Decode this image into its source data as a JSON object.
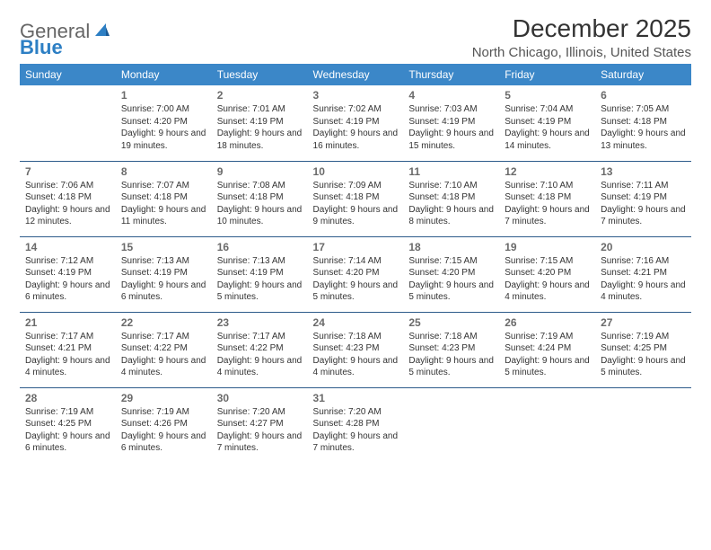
{
  "logo": {
    "general": "General",
    "blue": "Blue"
  },
  "title": "December 2025",
  "location": "North Chicago, Illinois, United States",
  "colors": {
    "header_bg": "#3b87c8",
    "row_separator": "#2d5b8a",
    "text": "#333333",
    "day_num": "#6a6a6a"
  },
  "typography": {
    "title_fontsize": 28,
    "location_fontsize": 15,
    "header_fontsize": 12,
    "daynum_fontsize": 12,
    "cell_fontsize": 10
  },
  "day_headers": [
    "Sunday",
    "Monday",
    "Tuesday",
    "Wednesday",
    "Thursday",
    "Friday",
    "Saturday"
  ],
  "weeks": [
    [
      null,
      {
        "n": "1",
        "sunrise": "Sunrise: 7:00 AM",
        "sunset": "Sunset: 4:20 PM",
        "daylight": "Daylight: 9 hours and 19 minutes."
      },
      {
        "n": "2",
        "sunrise": "Sunrise: 7:01 AM",
        "sunset": "Sunset: 4:19 PM",
        "daylight": "Daylight: 9 hours and 18 minutes."
      },
      {
        "n": "3",
        "sunrise": "Sunrise: 7:02 AM",
        "sunset": "Sunset: 4:19 PM",
        "daylight": "Daylight: 9 hours and 16 minutes."
      },
      {
        "n": "4",
        "sunrise": "Sunrise: 7:03 AM",
        "sunset": "Sunset: 4:19 PM",
        "daylight": "Daylight: 9 hours and 15 minutes."
      },
      {
        "n": "5",
        "sunrise": "Sunrise: 7:04 AM",
        "sunset": "Sunset: 4:19 PM",
        "daylight": "Daylight: 9 hours and 14 minutes."
      },
      {
        "n": "6",
        "sunrise": "Sunrise: 7:05 AM",
        "sunset": "Sunset: 4:18 PM",
        "daylight": "Daylight: 9 hours and 13 minutes."
      }
    ],
    [
      {
        "n": "7",
        "sunrise": "Sunrise: 7:06 AM",
        "sunset": "Sunset: 4:18 PM",
        "daylight": "Daylight: 9 hours and 12 minutes."
      },
      {
        "n": "8",
        "sunrise": "Sunrise: 7:07 AM",
        "sunset": "Sunset: 4:18 PM",
        "daylight": "Daylight: 9 hours and 11 minutes."
      },
      {
        "n": "9",
        "sunrise": "Sunrise: 7:08 AM",
        "sunset": "Sunset: 4:18 PM",
        "daylight": "Daylight: 9 hours and 10 minutes."
      },
      {
        "n": "10",
        "sunrise": "Sunrise: 7:09 AM",
        "sunset": "Sunset: 4:18 PM",
        "daylight": "Daylight: 9 hours and 9 minutes."
      },
      {
        "n": "11",
        "sunrise": "Sunrise: 7:10 AM",
        "sunset": "Sunset: 4:18 PM",
        "daylight": "Daylight: 9 hours and 8 minutes."
      },
      {
        "n": "12",
        "sunrise": "Sunrise: 7:10 AM",
        "sunset": "Sunset: 4:18 PM",
        "daylight": "Daylight: 9 hours and 7 minutes."
      },
      {
        "n": "13",
        "sunrise": "Sunrise: 7:11 AM",
        "sunset": "Sunset: 4:19 PM",
        "daylight": "Daylight: 9 hours and 7 minutes."
      }
    ],
    [
      {
        "n": "14",
        "sunrise": "Sunrise: 7:12 AM",
        "sunset": "Sunset: 4:19 PM",
        "daylight": "Daylight: 9 hours and 6 minutes."
      },
      {
        "n": "15",
        "sunrise": "Sunrise: 7:13 AM",
        "sunset": "Sunset: 4:19 PM",
        "daylight": "Daylight: 9 hours and 6 minutes."
      },
      {
        "n": "16",
        "sunrise": "Sunrise: 7:13 AM",
        "sunset": "Sunset: 4:19 PM",
        "daylight": "Daylight: 9 hours and 5 minutes."
      },
      {
        "n": "17",
        "sunrise": "Sunrise: 7:14 AM",
        "sunset": "Sunset: 4:20 PM",
        "daylight": "Daylight: 9 hours and 5 minutes."
      },
      {
        "n": "18",
        "sunrise": "Sunrise: 7:15 AM",
        "sunset": "Sunset: 4:20 PM",
        "daylight": "Daylight: 9 hours and 5 minutes."
      },
      {
        "n": "19",
        "sunrise": "Sunrise: 7:15 AM",
        "sunset": "Sunset: 4:20 PM",
        "daylight": "Daylight: 9 hours and 4 minutes."
      },
      {
        "n": "20",
        "sunrise": "Sunrise: 7:16 AM",
        "sunset": "Sunset: 4:21 PM",
        "daylight": "Daylight: 9 hours and 4 minutes."
      }
    ],
    [
      {
        "n": "21",
        "sunrise": "Sunrise: 7:17 AM",
        "sunset": "Sunset: 4:21 PM",
        "daylight": "Daylight: 9 hours and 4 minutes."
      },
      {
        "n": "22",
        "sunrise": "Sunrise: 7:17 AM",
        "sunset": "Sunset: 4:22 PM",
        "daylight": "Daylight: 9 hours and 4 minutes."
      },
      {
        "n": "23",
        "sunrise": "Sunrise: 7:17 AM",
        "sunset": "Sunset: 4:22 PM",
        "daylight": "Daylight: 9 hours and 4 minutes."
      },
      {
        "n": "24",
        "sunrise": "Sunrise: 7:18 AM",
        "sunset": "Sunset: 4:23 PM",
        "daylight": "Daylight: 9 hours and 4 minutes."
      },
      {
        "n": "25",
        "sunrise": "Sunrise: 7:18 AM",
        "sunset": "Sunset: 4:23 PM",
        "daylight": "Daylight: 9 hours and 5 minutes."
      },
      {
        "n": "26",
        "sunrise": "Sunrise: 7:19 AM",
        "sunset": "Sunset: 4:24 PM",
        "daylight": "Daylight: 9 hours and 5 minutes."
      },
      {
        "n": "27",
        "sunrise": "Sunrise: 7:19 AM",
        "sunset": "Sunset: 4:25 PM",
        "daylight": "Daylight: 9 hours and 5 minutes."
      }
    ],
    [
      {
        "n": "28",
        "sunrise": "Sunrise: 7:19 AM",
        "sunset": "Sunset: 4:25 PM",
        "daylight": "Daylight: 9 hours and 6 minutes."
      },
      {
        "n": "29",
        "sunrise": "Sunrise: 7:19 AM",
        "sunset": "Sunset: 4:26 PM",
        "daylight": "Daylight: 9 hours and 6 minutes."
      },
      {
        "n": "30",
        "sunrise": "Sunrise: 7:20 AM",
        "sunset": "Sunset: 4:27 PM",
        "daylight": "Daylight: 9 hours and 7 minutes."
      },
      {
        "n": "31",
        "sunrise": "Sunrise: 7:20 AM",
        "sunset": "Sunset: 4:28 PM",
        "daylight": "Daylight: 9 hours and 7 minutes."
      },
      null,
      null,
      null
    ]
  ]
}
